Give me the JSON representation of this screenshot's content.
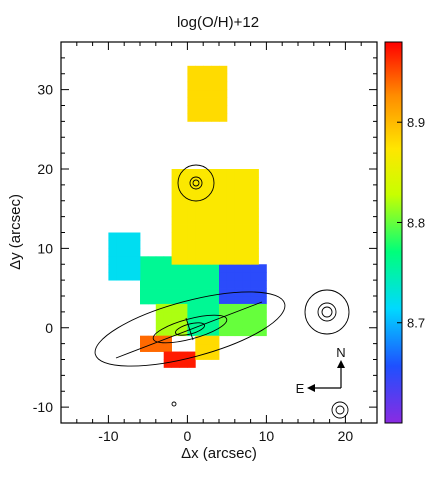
{
  "chart_data": {
    "type": "heatmap",
    "title": "log(O/H)+12",
    "xlabel": "Δx (arcsec)",
    "ylabel": "Δy (arcsec)",
    "xlim": [
      -16,
      24
    ],
    "ylim": [
      -12,
      36
    ],
    "xticks": [
      "-10",
      "0",
      "10",
      "20"
    ],
    "yticks": [
      "-10",
      "0",
      "10",
      "20",
      "30"
    ],
    "colorbar": {
      "range": [
        8.6,
        8.98
      ],
      "ticks": [
        "8.7",
        "8.8",
        "8.9"
      ],
      "colormap": "rainbow"
    },
    "compass": {
      "north": "N",
      "east": "E"
    },
    "pixel_size_arcsec": 1,
    "regions": [
      {
        "x0": -6,
        "x1": 2,
        "y0": 3,
        "y1": 9,
        "value": 8.76
      },
      {
        "x0": -4,
        "x1": 0,
        "y0": -1,
        "y1": 3,
        "value": 8.82
      },
      {
        "x0": 0,
        "x1": 4,
        "y0": -1,
        "y1": 8,
        "value": 8.76
      },
      {
        "x0": 4,
        "x1": 10,
        "y0": 3,
        "y1": 8,
        "value": 8.65
      },
      {
        "x0": 4,
        "x1": 10,
        "y0": -1,
        "y1": 3,
        "value": 8.8
      },
      {
        "x0": -10,
        "x1": -6,
        "y0": 6,
        "y1": 12,
        "value": 8.72
      },
      {
        "x0": -6,
        "x1": -2,
        "y0": -3,
        "y1": -1,
        "value": 8.94
      },
      {
        "x0": -3,
        "x1": 1,
        "y0": -5,
        "y1": -3,
        "value": 8.97
      },
      {
        "x0": 1,
        "x1": 4,
        "y0": -4,
        "y1": -1,
        "value": 8.88
      },
      {
        "x0": -2,
        "x1": 9,
        "y0": 8,
        "y1": 20,
        "value": 8.87
      },
      {
        "x0": 0,
        "x1": 5,
        "y0": 26,
        "y1": 33,
        "value": 8.88
      }
    ]
  }
}
